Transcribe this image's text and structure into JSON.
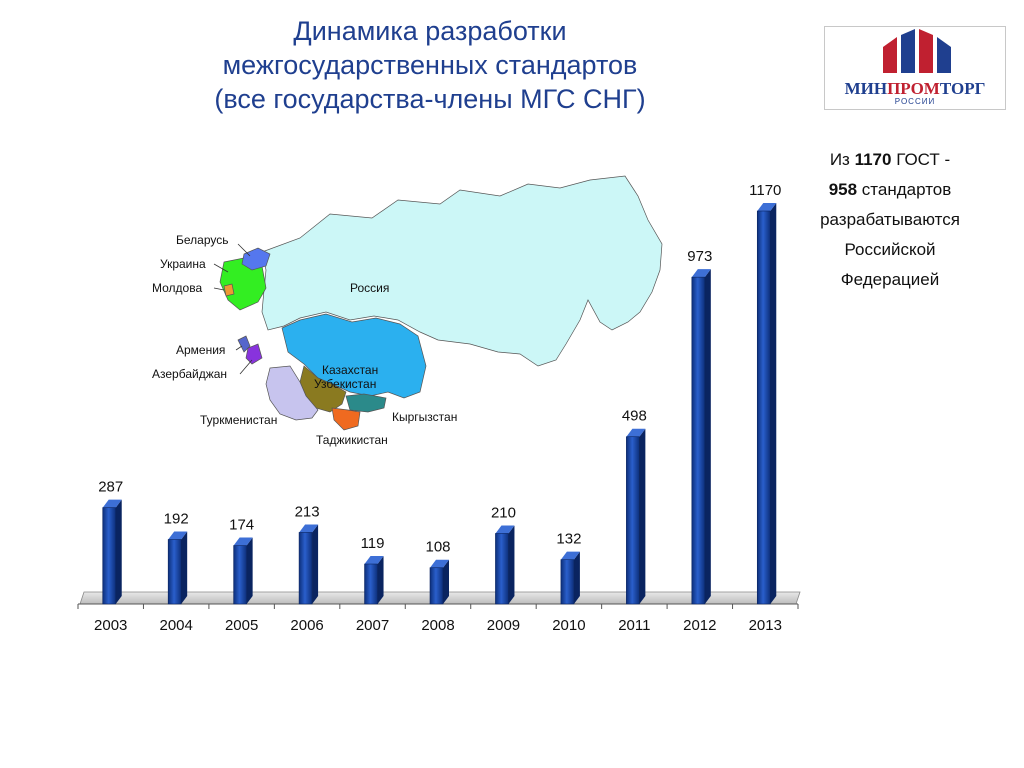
{
  "title": {
    "line1": "Динамика разработки",
    "line2": "межгосударственных стандартов",
    "line3": "(все государства-члены МГС СНГ)"
  },
  "logo": {
    "word_a": "МИН",
    "word_b": "ПРОМ",
    "word_c": "ТОРГ",
    "subtitle": "РОССИИ",
    "colors": {
      "blue": "#1f3f8f",
      "red": "#c02030"
    }
  },
  "note": {
    "part1": "Из ",
    "total": "1170",
    "part2": " ГОСТ -",
    "russia_count": "958",
    "part3": " стандартов",
    "line3": "разрабатываются",
    "line4": "Российской",
    "line5": "Федерацией"
  },
  "map": {
    "labels": {
      "belarus": "Беларусь",
      "ukraine": "Украина",
      "moldova": "Молдова",
      "russia": "Россия",
      "armenia": "Армения",
      "azerbaijan": "Азербайджан",
      "kazakhstan": "Казахстан",
      "uzbekistan": "Узбекистан",
      "turkmenistan": "Туркменистан",
      "kyrgyzstan": "Кыргызстан",
      "tajikistan": "Таджикистан"
    },
    "colors": {
      "russia": "#ccf7f7",
      "kazakhstan": "#2bb0ef",
      "uzbekistan": "#8a7a20",
      "turkmenistan": "#c7c4ee",
      "kyrgyzstan": "#2b8a8a",
      "tajikistan": "#ef6a20",
      "ukraine": "#33ee22",
      "belarus": "#5577ee",
      "moldova": "#ee9933",
      "armenia": "#5566cc",
      "azerbaijan": "#8833dd"
    }
  },
  "chart_data": {
    "type": "bar",
    "categories": [
      "2003",
      "2004",
      "2005",
      "2006",
      "2007",
      "2008",
      "2009",
      "2010",
      "2011",
      "2012",
      "2013"
    ],
    "values": [
      287,
      192,
      174,
      213,
      119,
      108,
      210,
      132,
      498,
      973,
      1170
    ],
    "data_labels": [
      "287",
      "192",
      "174",
      "213",
      "119",
      "108",
      "210",
      "132",
      "498",
      "973",
      "1170"
    ],
    "ylim": [
      0,
      1170
    ],
    "bar_color": "#1a4aa8",
    "grid": false,
    "legend": "none"
  }
}
